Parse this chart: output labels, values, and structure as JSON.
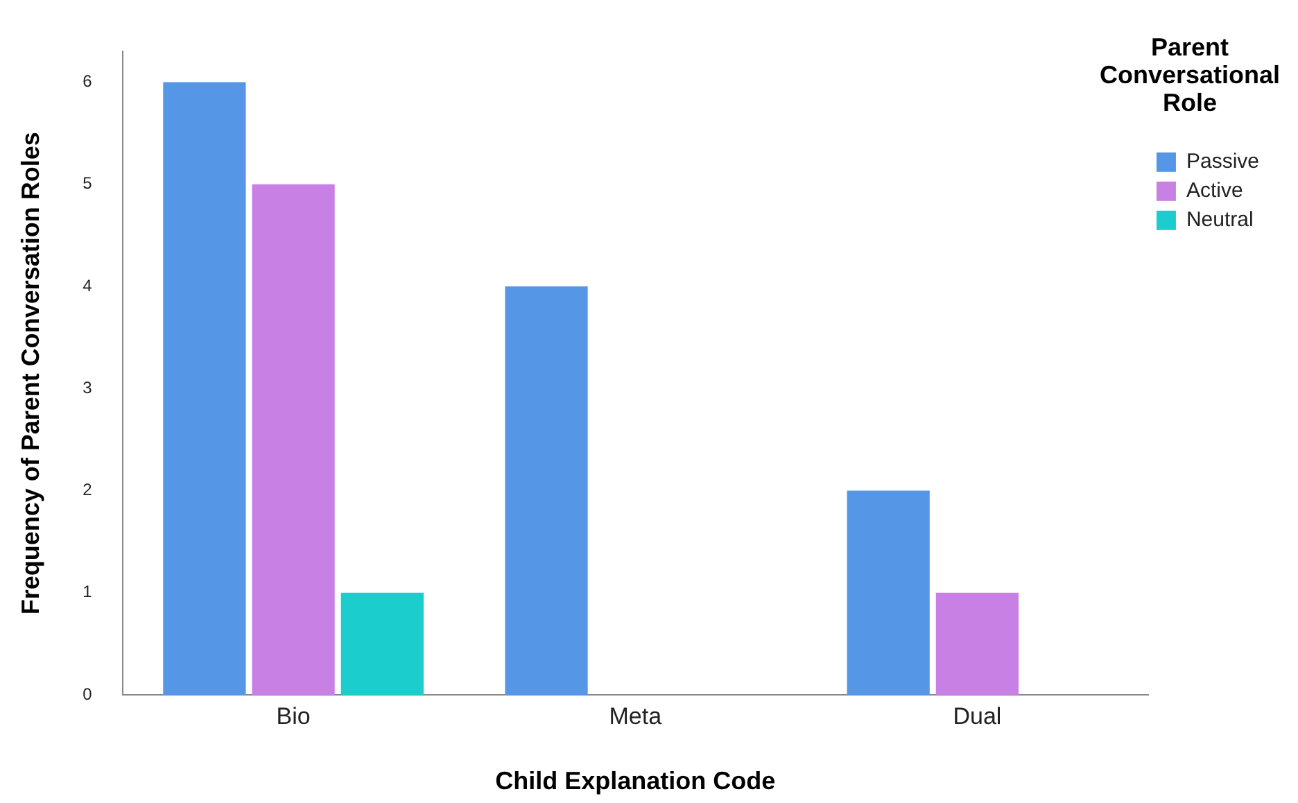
{
  "chart_data": {
    "type": "bar",
    "xlabel": "Child Explanation Code",
    "ylabel": "Frequency of Parent Conversation Roles",
    "legend_title": "Parent Conversational Role",
    "categories": [
      "Bio",
      "Meta",
      "Dual"
    ],
    "series": [
      {
        "name": "Passive",
        "color": "#5596e6",
        "values": [
          6,
          4,
          2
        ]
      },
      {
        "name": "Active",
        "color": "#c880e4",
        "values": [
          5,
          0,
          1
        ]
      },
      {
        "name": "Neutral",
        "color": "#1ccdcd",
        "values": [
          1,
          0,
          0
        ]
      }
    ],
    "ylim": [
      0,
      6.3
    ],
    "yticks": [
      0,
      1,
      2,
      3,
      4,
      5,
      6
    ],
    "grid": false,
    "legend": "top right"
  }
}
